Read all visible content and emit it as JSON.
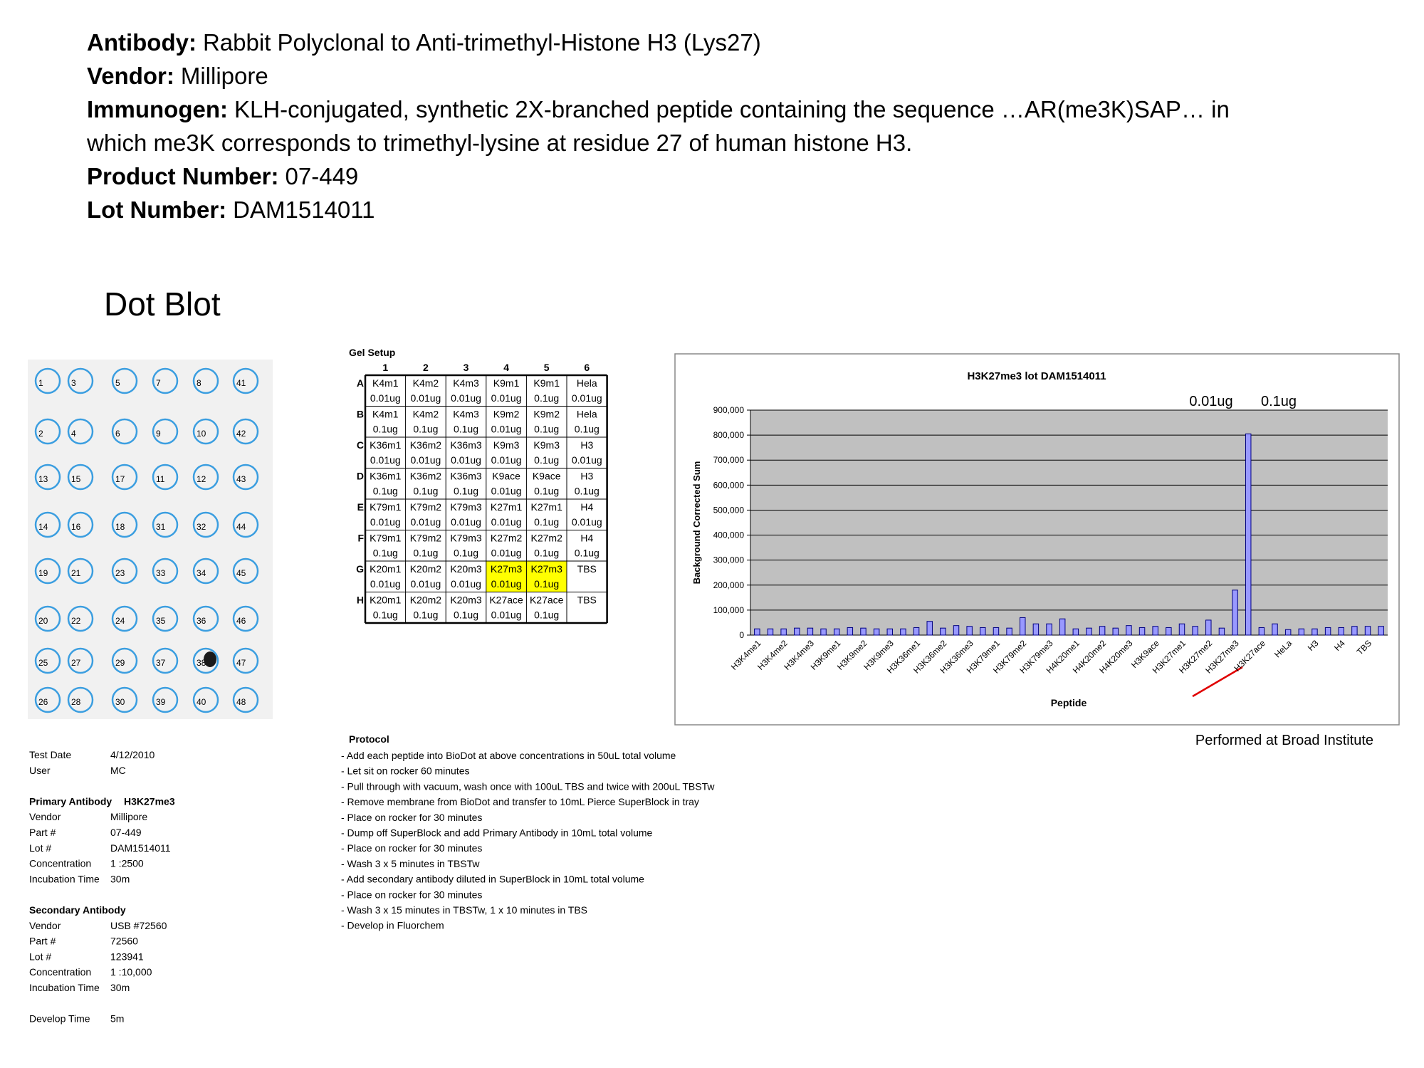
{
  "header": [
    {
      "label": "Antibody:",
      "text": [
        "Rabbit Polyclonal to Anti-trimethyl-Histone H3 (Lys27)"
      ]
    },
    {
      "label": "Vendor:",
      "text": [
        "Millipore"
      ]
    },
    {
      "label": "Immunogen:",
      "text": [
        "KLH-conjugated, synthetic 2X-branched peptide containing the sequence …AR(me3K)SAP… in",
        "which me3K corresponds to trimethyl-lysine at residue 27 of human histone H3."
      ]
    },
    {
      "label": "Product Number:",
      "text": [
        "07-449"
      ]
    },
    {
      "label": "Lot Number:",
      "text": [
        "DAM1514011"
      ]
    }
  ],
  "section_title": "Dot Blot",
  "dot_blot": [
    [
      1,
      3,
      5,
      7,
      8,
      41
    ],
    [
      2,
      4,
      6,
      9,
      10,
      42
    ],
    [
      13,
      15,
      17,
      11,
      12,
      43
    ],
    [
      14,
      16,
      18,
      31,
      32,
      44
    ],
    [
      19,
      21,
      23,
      33,
      34,
      45
    ],
    [
      20,
      22,
      24,
      35,
      36,
      46
    ],
    [
      25,
      27,
      29,
      37,
      38,
      47
    ],
    [
      26,
      28,
      30,
      39,
      40,
      48
    ]
  ],
  "gel_setup": {
    "title": "Gel Setup",
    "columns": [
      1,
      2,
      3,
      4,
      5,
      6
    ],
    "rows": [
      "A",
      "B",
      "C",
      "D",
      "E",
      "F",
      "G",
      "H"
    ],
    "cells": [
      [
        {
          "text": [
            "K4m1",
            "0.01ug"
          ]
        },
        {
          "text": [
            "K4m2",
            "0.01ug"
          ]
        },
        {
          "text": [
            "K4m3",
            "0.01ug"
          ]
        },
        {
          "text": [
            "K9m1",
            "0.01ug"
          ]
        },
        {
          "text": [
            "K9m1",
            "0.1ug"
          ]
        },
        {
          "text": [
            "Hela",
            "0.01ug"
          ]
        }
      ],
      [
        {
          "text": [
            "K4m1",
            "0.1ug"
          ]
        },
        {
          "text": [
            "K4m2",
            "0.1ug"
          ]
        },
        {
          "text": [
            "K4m3",
            "0.1ug"
          ]
        },
        {
          "text": [
            "K9m2",
            "0.01ug"
          ]
        },
        {
          "text": [
            "K9m2",
            "0.1ug"
          ]
        },
        {
          "text": [
            "Hela",
            "0.1ug"
          ]
        }
      ],
      [
        {
          "text": [
            "K36m1",
            "0.01ug"
          ]
        },
        {
          "text": [
            "K36m2",
            "0.01ug"
          ]
        },
        {
          "text": [
            "K36m3",
            "0.01ug"
          ]
        },
        {
          "text": [
            "K9m3",
            "0.01ug"
          ]
        },
        {
          "text": [
            "K9m3",
            "0.1ug"
          ]
        },
        {
          "text": [
            "H3",
            "0.01ug"
          ]
        }
      ],
      [
        {
          "text": [
            "K36m1",
            "0.1ug"
          ]
        },
        {
          "text": [
            "K36m2",
            "0.1ug"
          ]
        },
        {
          "text": [
            "K36m3",
            "0.1ug"
          ]
        },
        {
          "text": [
            "K9ace",
            "0.01ug"
          ]
        },
        {
          "text": [
            "K9ace",
            "0.1ug"
          ]
        },
        {
          "text": [
            "H3",
            "0.1ug"
          ]
        }
      ],
      [
        {
          "text": [
            "K79m1",
            "0.01ug"
          ]
        },
        {
          "text": [
            "K79m2",
            "0.01ug"
          ]
        },
        {
          "text": [
            "K79m3",
            "0.01ug"
          ]
        },
        {
          "text": [
            "K27m1",
            "0.01ug"
          ]
        },
        {
          "text": [
            "K27m1",
            "0.1ug"
          ]
        },
        {
          "text": [
            "H4",
            "0.01ug"
          ]
        }
      ],
      [
        {
          "text": [
            "K79m1",
            "0.1ug"
          ]
        },
        {
          "text": [
            "K79m2",
            "0.1ug"
          ]
        },
        {
          "text": [
            "K79m3",
            "0.1ug"
          ]
        },
        {
          "text": [
            "K27m2",
            "0.01ug"
          ]
        },
        {
          "text": [
            "K27m2",
            "0.1ug"
          ]
        },
        {
          "text": [
            "H4",
            "0.1ug"
          ]
        }
      ],
      [
        {
          "text": [
            "K20m1",
            "0.01ug"
          ]
        },
        {
          "text": [
            "K20m2",
            "0.01ug"
          ]
        },
        {
          "text": [
            "K20m3",
            "0.01ug"
          ]
        },
        {
          "text": [
            "K27m3",
            "0.01ug"
          ],
          "fill": "#ffff00"
        },
        {
          "text": [
            "K27m3",
            "0.1ug"
          ],
          "fill": "#ffff00"
        },
        {
          "text": [
            "TBS"
          ]
        }
      ],
      [
        {
          "text": [
            "K20m1",
            "0.1ug"
          ]
        },
        {
          "text": [
            "K20m2",
            "0.1ug"
          ]
        },
        {
          "text": [
            "K20m3",
            "0.1ug"
          ]
        },
        {
          "text": [
            "K27ace",
            "0.01ug"
          ]
        },
        {
          "text": [
            "K27ace",
            "0.1ug"
          ]
        },
        {
          "text": [
            "TBS"
          ]
        }
      ]
    ]
  },
  "chart_data": {
    "type": "bar",
    "title": "H3K27me3 lot DAM1514011",
    "y_label": "Background Corrected Sum",
    "x_label": "Peptide",
    "categories": [
      "H3K4me1",
      null,
      "H3K4me2",
      null,
      "H3K4me3",
      null,
      "H3K9me1",
      null,
      "H3K9me2",
      null,
      "H3K9me3",
      null,
      "H3K36me1",
      null,
      "H3K36me2",
      null,
      "H3K36me3",
      null,
      "H3K79me1",
      null,
      "H3K79me2",
      null,
      "H3K79me3",
      null,
      "H4K20me1",
      null,
      "H4K20me2",
      null,
      "H4K20me3",
      null,
      "H3K9ace",
      null,
      "H3K27me1",
      null,
      "H3K27me2",
      null,
      "H3K27me3",
      null,
      "H3K27ace",
      null,
      "HeLa",
      null,
      "H3",
      null,
      "H4",
      null,
      "TBS",
      null
    ],
    "values": [
      25000,
      25000,
      25000,
      28000,
      28000,
      25000,
      25000,
      30000,
      28000,
      25000,
      25000,
      25000,
      30000,
      55000,
      28000,
      38000,
      35000,
      30000,
      30000,
      28000,
      70000,
      45000,
      45000,
      65000,
      25000,
      28000,
      35000,
      28000,
      38000,
      30000,
      35000,
      30000,
      45000,
      35000,
      60000,
      28000,
      180000,
      805000,
      30000,
      45000,
      22000,
      25000,
      25000,
      30000,
      30000,
      35000,
      35000,
      35000
    ],
    "color": "#9999ff",
    "ylim": [
      0,
      900000
    ],
    "yticks": [
      0,
      {
        "value": 100000,
        "label": "100,000"
      },
      {
        "value": 200000,
        "label": "200,000"
      },
      {
        "value": 300000,
        "label": "300,000"
      },
      {
        "value": 400000,
        "label": "400,000"
      },
      {
        "value": 500000,
        "label": "500,000"
      },
      {
        "value": 600000,
        "label": "600,000"
      },
      {
        "value": 700000,
        "label": "700,000"
      },
      {
        "value": 800000,
        "label": "800,000"
      },
      {
        "value": 900000,
        "label": "900,000"
      }
    ],
    "grid": true,
    "annotations": [
      "0.01ug",
      "0.1ug"
    ]
  },
  "credit": "Performed at Broad Institute",
  "test_info": [
    {
      "rows": [
        [
          "Test Date",
          "4/12/2010"
        ],
        [
          "User",
          "MC"
        ]
      ]
    },
    {
      "heading": "Primary Antibody",
      "heading_value": "H3K27me3",
      "rows": [
        [
          "Vendor",
          "Millipore"
        ],
        [
          "Part #",
          "07-449"
        ],
        [
          "Lot #",
          "DAM1514011"
        ],
        [
          "Concentration",
          "1 :2500"
        ],
        [
          "Incubation Time",
          "30m"
        ]
      ]
    },
    {
      "heading": "Secondary Antibody",
      "rows": [
        [
          "Vendor",
          "USB #72560"
        ],
        [
          "Part #",
          "72560"
        ],
        [
          "Lot #",
          "123941"
        ],
        [
          "Concentration",
          "1 :10,000"
        ],
        [
          "Incubation Time",
          "30m"
        ]
      ]
    },
    {
      "rows": [
        [
          "Develop Time",
          "5m"
        ]
      ]
    }
  ],
  "protocol": {
    "title": "Protocol",
    "steps": [
      "- Add each peptide into BioDot at above concentrations in 50uL total volume",
      "- Let sit on rocker 60 minutes",
      "- Pull through with vacuum, wash once with 100uL TBS and twice with 200uL TBSTw",
      "- Remove membrane from BioDot and transfer to 10mL Pierce SuperBlock in tray",
      "- Place on rocker for 30 minutes",
      "- Dump off SuperBlock and add Primary Antibody in 10mL total volume",
      "- Place on rocker for 30 minutes",
      "- Wash 3 x 5 minutes in TBSTw",
      "- Add secondary antibody diluted in SuperBlock in 10mL total volume",
      "- Place on rocker for 30 minutes",
      "- Wash 3 x 15 minutes in TBSTw, 1 x 10 minutes in TBS",
      "- Develop in Fluorchem"
    ]
  }
}
